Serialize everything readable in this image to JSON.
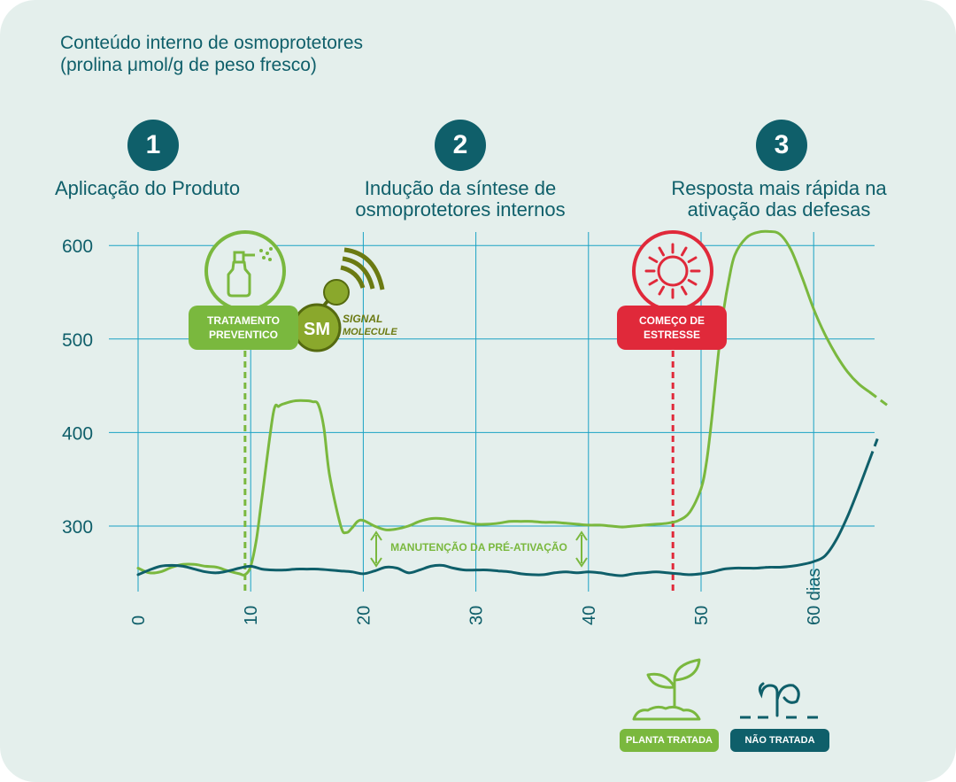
{
  "title": {
    "line1": "Conteúdo interno de osmoprotetores",
    "line2": "(prolina μmol/g de peso fresco)"
  },
  "steps": [
    {
      "number": "1",
      "text_lines": [
        "Aplicação do Produto"
      ]
    },
    {
      "number": "2",
      "text_lines": [
        "Indução da síntese de",
        "osmoprotetores internos"
      ]
    },
    {
      "number": "3",
      "text_lines": [
        "Resposta mais rápida na",
        "ativação das defesas"
      ]
    }
  ],
  "markers": {
    "treatment": {
      "label_line1": "TRATAMENTO",
      "label_line2": "PREVENTICO",
      "day": 9.5,
      "icon": "spray-bottle-icon"
    },
    "stress": {
      "label_line1": "COMEÇO DE",
      "label_line2": "ESTRESSE",
      "day": 47.5,
      "icon": "sun-icon"
    },
    "logo": {
      "mark": "SM",
      "text_line1": "SIGNAL",
      "text_line2": "MOLECULE"
    }
  },
  "annotation": {
    "text": "MANUTENÇÃO DA PRÉ-ATIVAÇÃO"
  },
  "legend": [
    {
      "label": "PLANTA TRATADA",
      "icon": "sprout-icon",
      "color": "#7ab83e"
    },
    {
      "label": "NÃO TRATADA",
      "icon": "wilted-plant-icon",
      "color": "#0f5f6a"
    }
  ],
  "colors": {
    "treated": "#7ab83e",
    "untreated": "#0f5f6a",
    "stress": "#e0293a",
    "grid": "#1aa2c4",
    "text": "#0f5f6a"
  },
  "chart_data": {
    "type": "line",
    "x_tick_labels": [
      "0",
      "10",
      "20",
      "30",
      "40",
      "50",
      "60 dias"
    ],
    "x_ticks": [
      0,
      10,
      20,
      30,
      40,
      50,
      60
    ],
    "y_tick_labels": [
      "300",
      "400",
      "500",
      "600"
    ],
    "y_ticks": [
      300,
      400,
      500,
      600
    ],
    "xlim": [
      0,
      65
    ],
    "ylim": [
      237,
      622
    ],
    "grid": true,
    "series": [
      {
        "color": "#7ab83e",
        "x": [
          0,
          1,
          2,
          3,
          4,
          5,
          6,
          7,
          8,
          9,
          9.5,
          10,
          10.5,
          11,
          12,
          12.5,
          13,
          14,
          15,
          15.5,
          16,
          16.5,
          17,
          18,
          18.5,
          19,
          19.5,
          20,
          21,
          22,
          23,
          24,
          25,
          26,
          27,
          28,
          29,
          30,
          31,
          32,
          33,
          34,
          35,
          36,
          37,
          38,
          39,
          40,
          41,
          42,
          43,
          44,
          45,
          46,
          47,
          48,
          49,
          50,
          50.5,
          51,
          51.5,
          52,
          52.5,
          53,
          54,
          55,
          56,
          57,
          58,
          59,
          60,
          61,
          62,
          63,
          64,
          65
        ],
        "y": [
          255,
          250,
          251,
          256,
          259,
          259,
          257,
          256,
          252,
          249,
          248,
          257,
          285,
          330,
          420,
          428,
          431,
          434,
          434,
          433,
          430,
          405,
          355,
          300,
          293,
          298,
          305,
          306,
          300,
          296,
          297,
          300,
          305,
          308,
          308,
          306,
          304,
          302,
          302,
          303,
          305,
          305,
          305,
          304,
          304,
          303,
          302,
          301,
          301,
          300,
          299,
          300,
          301,
          302,
          303,
          306,
          315,
          340,
          370,
          420,
          480,
          530,
          565,
          590,
          608,
          614,
          615,
          612,
          595,
          565,
          532,
          505,
          483,
          465,
          452,
          443
        ]
      },
      {
        "color": "#0f5f6a",
        "x": [
          0,
          1,
          2,
          3,
          4,
          5,
          6,
          7,
          8,
          9,
          10,
          11,
          12,
          13,
          14,
          15,
          16,
          17,
          18,
          19,
          20,
          21,
          22,
          23,
          24,
          25,
          26,
          27,
          28,
          29,
          30,
          31,
          32,
          33,
          34,
          35,
          36,
          37,
          38,
          39,
          40,
          41,
          42,
          43,
          44,
          45,
          46,
          47,
          48,
          49,
          50,
          51,
          52,
          53,
          54,
          55,
          56,
          57,
          58,
          59,
          60,
          61,
          62,
          63,
          64,
          65
        ],
        "y": [
          248,
          253,
          257,
          258,
          257,
          254,
          251,
          250,
          252,
          255,
          257,
          254,
          253,
          253,
          254,
          254,
          254,
          253,
          252,
          251,
          249,
          252,
          256,
          255,
          250,
          253,
          257,
          258,
          255,
          253,
          253,
          253,
          252,
          251,
          249,
          248,
          248,
          250,
          251,
          250,
          251,
          250,
          248,
          247,
          249,
          250,
          251,
          250,
          249,
          248,
          249,
          251,
          254,
          255,
          255,
          255,
          256,
          256,
          257,
          259,
          262,
          268,
          285,
          310,
          340,
          372
        ]
      }
    ]
  }
}
